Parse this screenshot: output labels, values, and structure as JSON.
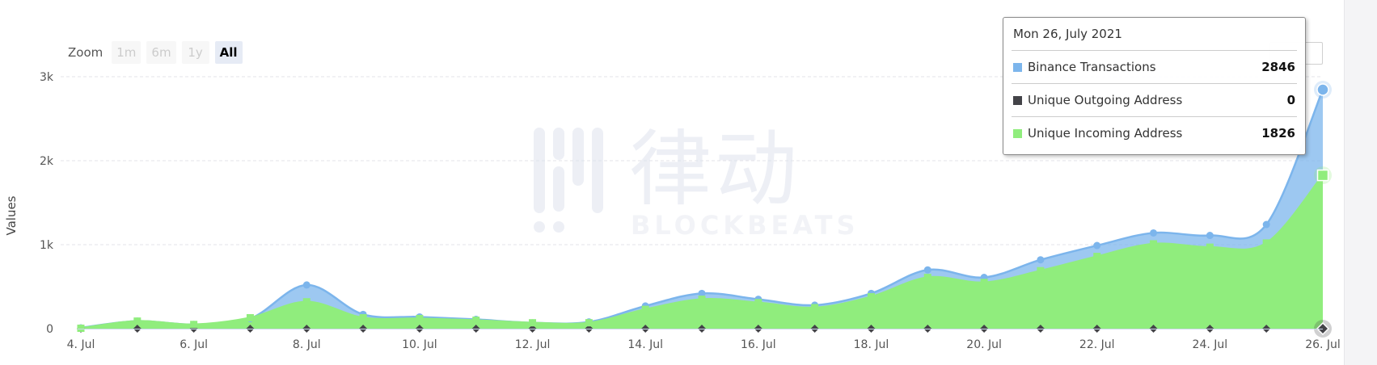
{
  "zoom": {
    "label": "Zoom",
    "buttons": [
      "1m",
      "6m",
      "1y",
      "All"
    ],
    "active": "All"
  },
  "watermark": {
    "cn": "律动",
    "en": "BLOCKBEATS"
  },
  "tooltip": {
    "date": "Mon 26, July 2021",
    "rows": [
      {
        "name": "Binance Transactions",
        "value": "2846",
        "color": "#7cb5ec"
      },
      {
        "name": "Unique Outgoing Address",
        "value": "0",
        "color": "#434348"
      },
      {
        "name": "Unique Incoming Address",
        "value": "1826",
        "color": "#90ed7d"
      }
    ]
  },
  "chart_data": {
    "type": "area",
    "ylabel": "Values",
    "ylim": [
      0,
      3000
    ],
    "y_ticks": [
      0,
      1000,
      2000,
      3000
    ],
    "y_tick_labels": [
      "0",
      "1k",
      "2k",
      "3k"
    ],
    "x": [
      "4. Jul",
      "5. Jul",
      "6. Jul",
      "7. Jul",
      "8. Jul",
      "9. Jul",
      "10. Jul",
      "11. Jul",
      "12. Jul",
      "13. Jul",
      "14. Jul",
      "15. Jul",
      "16. Jul",
      "17. Jul",
      "18. Jul",
      "19. Jul",
      "20. Jul",
      "21. Jul",
      "22. Jul",
      "23. Jul",
      "24. Jul",
      "25. Jul",
      "26. Jul"
    ],
    "x_tick_labels": [
      "4. Jul",
      "6. Jul",
      "8. Jul",
      "10. Jul",
      "12. Jul",
      "14. Jul",
      "16. Jul",
      "18. Jul",
      "20. Jul",
      "22. Jul",
      "24. Jul",
      "26. Jul"
    ],
    "grid": true,
    "series": [
      {
        "name": "Binance Transactions",
        "color": "#7cb5ec",
        "values": [
          10,
          90,
          50,
          120,
          520,
          170,
          140,
          110,
          70,
          80,
          270,
          420,
          350,
          280,
          420,
          700,
          610,
          820,
          990,
          1140,
          1110,
          1240,
          2846
        ]
      },
      {
        "name": "Unique Outgoing Address",
        "color": "#434348",
        "values": [
          0,
          0,
          0,
          0,
          0,
          0,
          0,
          0,
          0,
          0,
          0,
          0,
          0,
          0,
          0,
          0,
          0,
          0,
          0,
          0,
          0,
          0,
          0
        ]
      },
      {
        "name": "Unique Incoming Address",
        "color": "#90ed7d",
        "values": [
          5,
          90,
          50,
          130,
          320,
          130,
          120,
          100,
          70,
          70,
          230,
          350,
          310,
          250,
          380,
          610,
          550,
          690,
          860,
          1010,
          970,
          1020,
          1826
        ]
      }
    ],
    "highlight_index": 22
  }
}
